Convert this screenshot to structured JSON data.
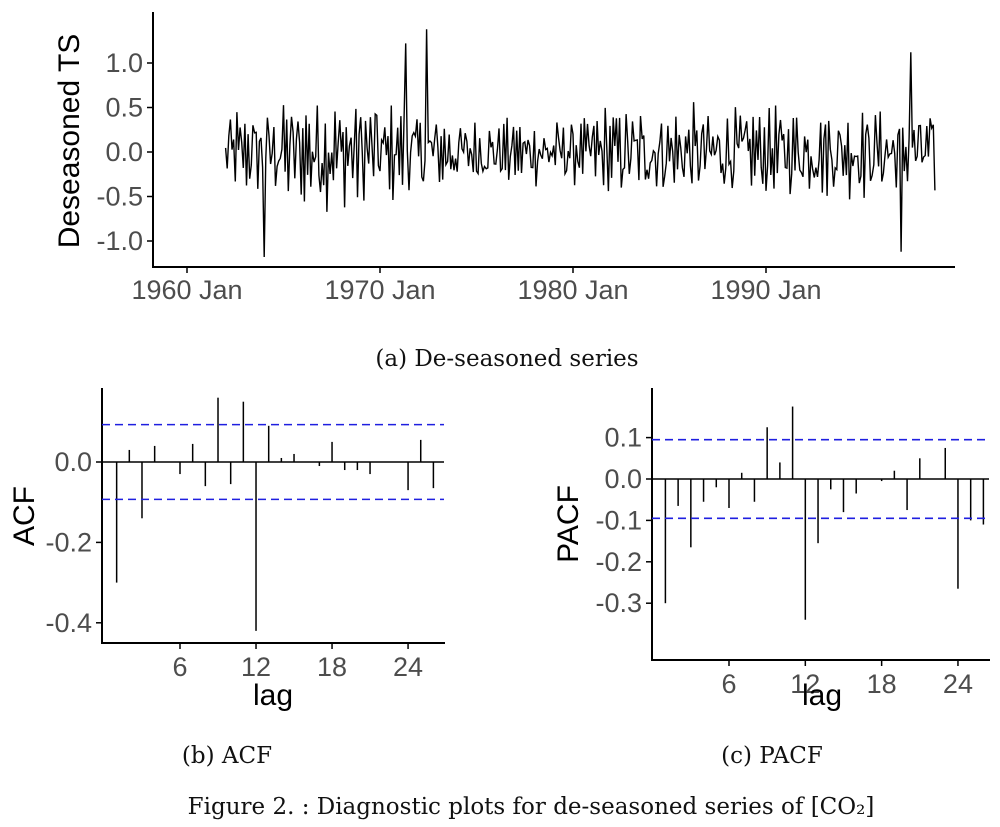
{
  "figure_caption": "Figure 2. : Diagnostic plots for de-seasoned series of [CO₂]",
  "chart_data": [
    {
      "type": "line",
      "caption": "(a) De-seasoned series",
      "ylabel": "Deseasoned TS",
      "xlabel": "",
      "x_start": "1962 Jan",
      "frequency": "monthly",
      "n_obs": 442,
      "xlim": [
        "1960 Jan",
        "1999 Dec"
      ],
      "ylim": [
        -1.2,
        1.4
      ],
      "x_ticks": [
        "1960 Jan",
        "1970 Jan",
        "1980 Jan",
        "1990 Jan"
      ],
      "y_ticks": [
        "1.0",
        "0.5",
        "0.0",
        "-0.5",
        "-1.0"
      ],
      "y_tick_values": [
        1.0,
        0.5,
        0.0,
        -0.5,
        -1.0
      ],
      "notable_points": [
        {
          "x": "1964 Jan",
          "y": -1.18
        },
        {
          "x": "1971 May",
          "y": 1.22
        },
        {
          "x": "1972 Jun",
          "y": 1.38
        },
        {
          "x": "1997 Jan",
          "y": -1.12
        },
        {
          "x": "1997 Jul",
          "y": 1.12
        }
      ]
    },
    {
      "type": "bar",
      "caption": "(b) ACF",
      "xlabel": "lag",
      "ylabel": "ACF",
      "x_ticks": [
        "6",
        "12",
        "18",
        "24"
      ],
      "x_tick_values": [
        6,
        12,
        18,
        24
      ],
      "y_ticks": [
        "0.0",
        "-0.2",
        "-0.4"
      ],
      "y_tick_values": [
        0.0,
        -0.2,
        -0.4
      ],
      "ylim": [
        -0.43,
        0.17
      ],
      "xlim": [
        0,
        27
      ],
      "confidence_bound": 0.093,
      "lags": [
        1,
        2,
        3,
        4,
        5,
        6,
        7,
        8,
        9,
        10,
        11,
        12,
        13,
        14,
        15,
        16,
        17,
        18,
        19,
        20,
        21,
        22,
        23,
        24,
        25,
        26
      ],
      "values": [
        -0.3,
        0.03,
        -0.14,
        0.04,
        0.0,
        -0.03,
        0.045,
        -0.06,
        0.16,
        -0.055,
        0.15,
        -0.42,
        0.09,
        0.01,
        0.02,
        0.0,
        -0.01,
        0.05,
        -0.02,
        -0.02,
        -0.03,
        0.0,
        0.0,
        -0.07,
        0.055,
        -0.065
      ]
    },
    {
      "type": "bar",
      "caption": "(c) PACF",
      "xlabel": "lag",
      "ylabel": "PACF",
      "x_ticks": [
        "6",
        "12",
        "18",
        "24"
      ],
      "x_tick_values": [
        6,
        12,
        18,
        24
      ],
      "y_ticks": [
        "0.1",
        "0.0",
        "-0.1",
        "-0.2",
        "-0.3"
      ],
      "y_tick_values": [
        0.1,
        0.0,
        -0.1,
        -0.2,
        -0.3
      ],
      "ylim": [
        -0.36,
        0.18
      ],
      "xlim": [
        0,
        27
      ],
      "confidence_bound": 0.095,
      "lags": [
        1,
        2,
        3,
        4,
        5,
        6,
        7,
        8,
        9,
        10,
        11,
        12,
        13,
        14,
        15,
        16,
        17,
        18,
        19,
        20,
        21,
        22,
        23,
        24,
        25,
        26
      ],
      "values": [
        -0.3,
        -0.065,
        -0.165,
        -0.055,
        -0.02,
        -0.07,
        0.015,
        -0.055,
        0.125,
        0.04,
        0.175,
        -0.34,
        -0.155,
        -0.025,
        -0.08,
        -0.035,
        0.0,
        -0.005,
        0.02,
        -0.075,
        0.05,
        0.0,
        0.075,
        -0.265,
        -0.1,
        -0.11
      ]
    }
  ]
}
